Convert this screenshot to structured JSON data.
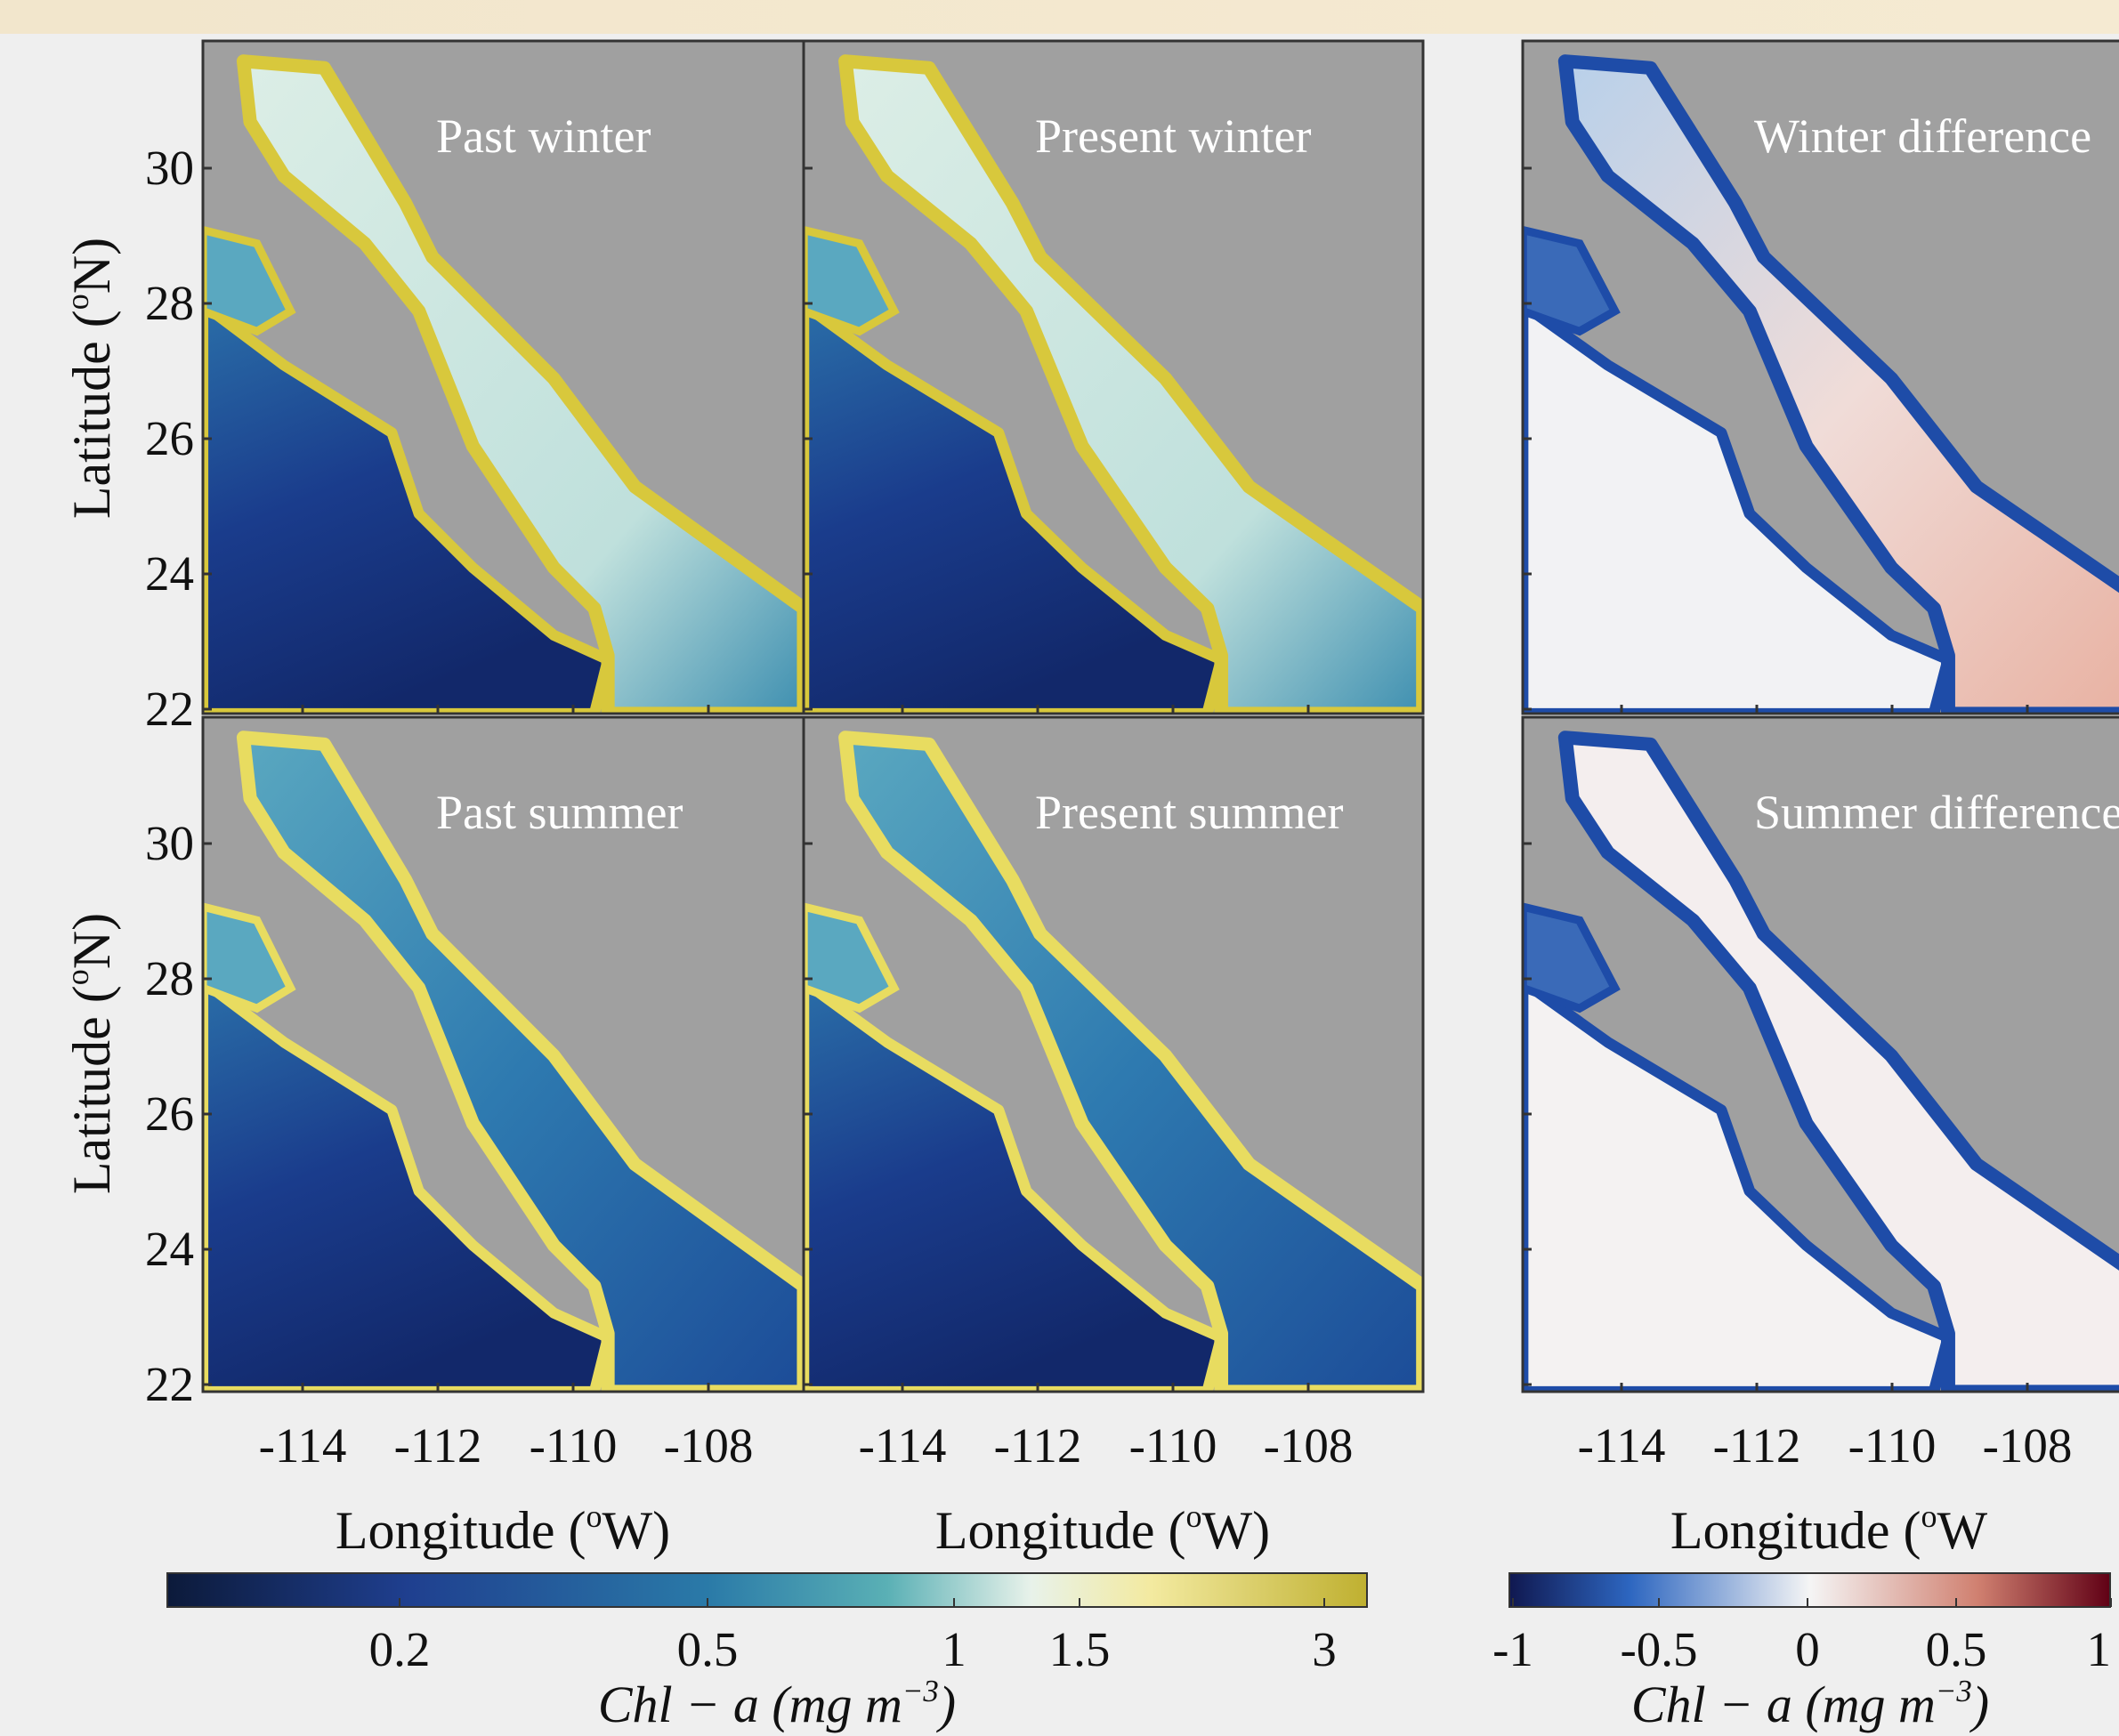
{
  "panels": [
    {
      "title": "Past winter"
    },
    {
      "title": "Present winter"
    },
    {
      "title": "Winter difference"
    },
    {
      "title": "Past summer"
    },
    {
      "title": "Present summer"
    },
    {
      "title": "Summer difference"
    }
  ],
  "y_axis": {
    "label": {
      "before": "Latitude (",
      "sup": "o",
      "after": "N)"
    },
    "ticks": [
      22,
      24,
      26,
      28,
      30
    ]
  },
  "x_axes": [
    {
      "label": {
        "before": "Longitude (",
        "sup": "o",
        "after": "W)"
      },
      "ticks": [
        -114,
        -112,
        -110,
        -108
      ]
    },
    {
      "label": {
        "before": "Longitude (",
        "sup": "o",
        "after": "W)"
      },
      "ticks": [
        -114,
        -112,
        -110,
        -108
      ]
    },
    {
      "label": {
        "before": "Longitude (",
        "sup": "o",
        "after": "W"
      },
      "ticks": [
        -114,
        -112,
        -110,
        -108
      ]
    }
  ],
  "colorbars": [
    {
      "ticks": [
        0.2,
        0.5,
        1,
        1.5,
        3
      ],
      "label": {
        "before": "Chl − a (mg m",
        "sup": "−3",
        "after": ")"
      }
    },
    {
      "ticks": [
        -1,
        -0.5,
        0,
        0.5,
        1
      ],
      "label": {
        "before": "Chl − a (mg m",
        "sup": "−3",
        "after": ")"
      }
    }
  ]
}
